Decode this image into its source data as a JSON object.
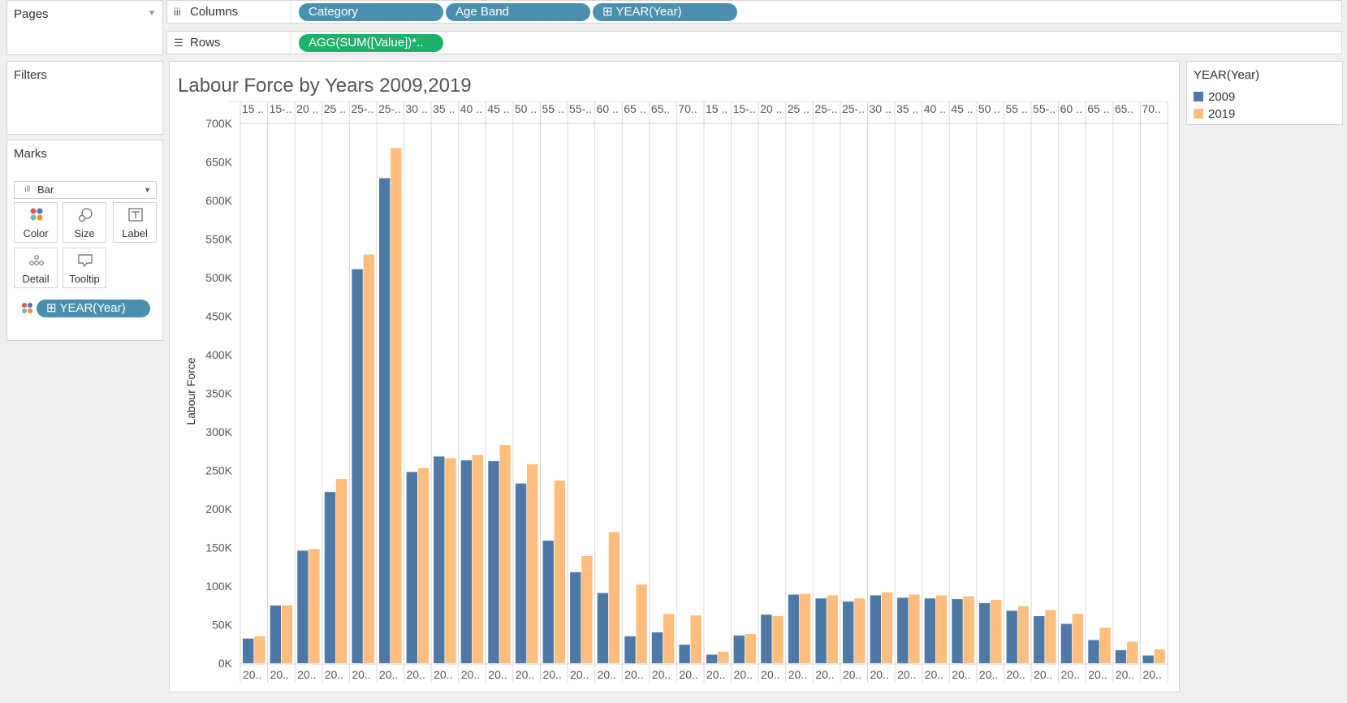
{
  "left": {
    "pages_label": "Pages",
    "filters_label": "Filters",
    "marks_label": "Marks",
    "mark_type": "Bar",
    "cards": [
      {
        "label": "Color",
        "icon": "color-dots-icon"
      },
      {
        "label": "Size",
        "icon": "size-circles-icon"
      },
      {
        "label": "Label",
        "icon": "text-label-icon"
      },
      {
        "label": "Detail",
        "icon": "detail-dots-icon"
      },
      {
        "label": "Tooltip",
        "icon": "tooltip-bubble-icon"
      }
    ],
    "marks_pill": "⊞ YEAR(Year)"
  },
  "shelves": {
    "columns_label": "Columns",
    "rows_label": "Rows",
    "columns_pills": [
      "Category",
      "Age Band",
      "⊞ YEAR(Year)"
    ],
    "rows_pills": [
      "AGG(SUM([Value])*.."
    ]
  },
  "legend": {
    "title": "YEAR(Year)",
    "items": [
      {
        "label": "2009",
        "color": "#4e79a7"
      },
      {
        "label": "2019",
        "color": "#ffbe7d"
      }
    ]
  },
  "chart_data": {
    "type": "bar",
    "title": "Labour Force by Years 2009,2019",
    "ylabel": "Labour Force",
    "ylim": [
      0,
      700000
    ],
    "yticks": [
      "0K",
      "50K",
      "100K",
      "150K",
      "200K",
      "250K",
      "300K",
      "350K",
      "400K",
      "450K",
      "500K",
      "550K",
      "600K",
      "650K",
      "700K"
    ],
    "categories": [
      "15 ..",
      "15-..",
      "20 ..",
      "25 ..",
      "25-..",
      "25-..",
      "30 ..",
      "35 ..",
      "40 ..",
      "45 ..",
      "50 ..",
      "55 ..",
      "55-..",
      "60 ..",
      "65 ..",
      "65..",
      "70..",
      "15 ..",
      "15-..",
      "20 ..",
      "25 ..",
      "25-..",
      "25-..",
      "30 ..",
      "35 ..",
      "40 ..",
      "45 ..",
      "50 ..",
      "55 ..",
      "55-..",
      "60 ..",
      "65 ..",
      "65..",
      "70.."
    ],
    "x_sub_label": "20..",
    "series": [
      {
        "name": "2009",
        "color": "#4e79a7",
        "values": [
          32000,
          75000,
          146000,
          222000,
          511000,
          629000,
          248000,
          268000,
          263000,
          262000,
          233000,
          159000,
          118000,
          91000,
          35000,
          40000,
          24000,
          11000,
          36000,
          63000,
          89000,
          84000,
          80000,
          88000,
          85000,
          84000,
          83000,
          78000,
          68000,
          61000,
          51000,
          30000,
          17000,
          10000
        ]
      },
      {
        "name": "2019",
        "color": "#ffbe7d",
        "values": [
          35000,
          75000,
          148000,
          239000,
          530000,
          668000,
          253000,
          266000,
          270000,
          283000,
          258000,
          237000,
          139000,
          170000,
          102000,
          64000,
          62000,
          15000,
          38000,
          61000,
          90000,
          88000,
          84000,
          92000,
          89000,
          88000,
          87000,
          82000,
          74000,
          69000,
          64000,
          46000,
          28000,
          18000
        ]
      }
    ]
  }
}
